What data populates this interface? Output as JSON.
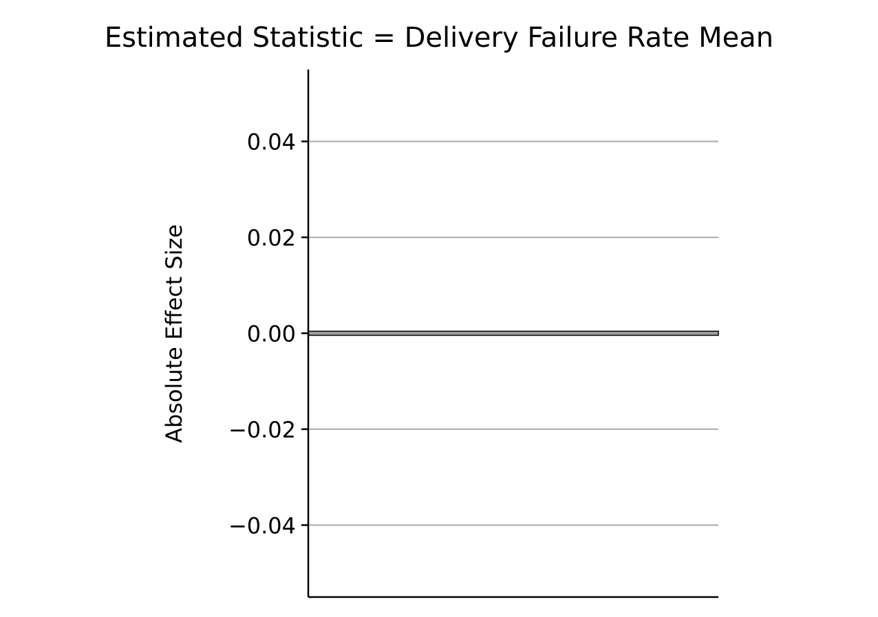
{
  "chart_data": {
    "type": "line",
    "title": "Estimated Statistic = Delivery Failure Rate Mean",
    "xlabel": "",
    "ylabel": "Absolute Effect Size",
    "ylim": [
      -0.055,
      0.055
    ],
    "yticks": [
      0.04,
      0.02,
      0.0,
      -0.02,
      -0.04
    ],
    "ytick_labels": [
      "0.04",
      "0.02",
      "0.00",
      "−0.02",
      "−0.04"
    ],
    "grid": "horizontal",
    "reference_line": 0.0,
    "series": [],
    "colors": {
      "grid": "#b0b0b0",
      "axis": "#000000",
      "reference_band": "#a0a0a0"
    }
  }
}
